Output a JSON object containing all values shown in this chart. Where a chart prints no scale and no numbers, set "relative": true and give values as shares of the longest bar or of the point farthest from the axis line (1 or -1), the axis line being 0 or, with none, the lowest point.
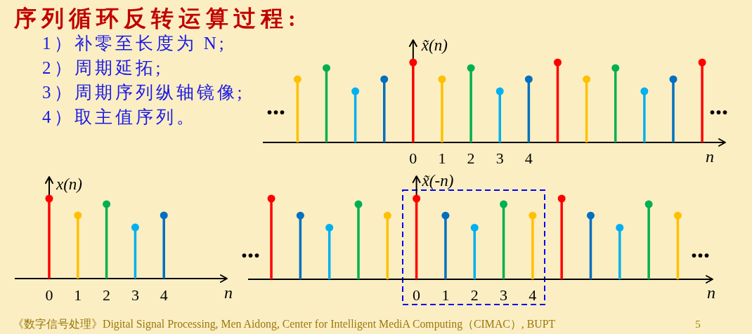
{
  "chart_data": [
    {
      "type": "other",
      "title": "序列循环反转运算过程:",
      "annotations": [
        "1）补零至长度为 N;",
        "2）周期延拓;",
        "3）周期序列纵轴镜像;",
        "4）取主值序列。",
        "《数字信号处理》Digital Signal Processing, Men Aidong, Center for Intelligent MediA Computing（CIMAC）, BUPT",
        "5"
      ]
    },
    {
      "type": "lollipop",
      "ylabel": "x̃(n)",
      "xlabel": "n",
      "relative": true,
      "marker": "circle",
      "xlim": [
        -5.2,
        10.8
      ],
      "xticks": [
        0,
        1,
        2,
        3,
        4
      ],
      "x": [
        -4,
        -3,
        -2,
        -1,
        0,
        1,
        2,
        3,
        4,
        5,
        6,
        7,
        8,
        9,
        10
      ],
      "values": [
        0.79,
        0.93,
        0.64,
        0.79,
        1,
        0.79,
        0.93,
        0.64,
        0.79,
        1,
        0.79,
        0.93,
        0.64,
        0.79,
        1
      ],
      "colors": [
        "#ffc000",
        "#00b050",
        "#00b0f0",
        "#0070c0",
        "#ff0000",
        "#ffc000",
        "#00b050",
        "#00b0f0",
        "#0070c0",
        "#ff0000",
        "#ffc000",
        "#00b050",
        "#00b0f0",
        "#0070c0",
        "#ff0000"
      ],
      "annotations": [
        "...",
        "..."
      ]
    },
    {
      "type": "lollipop",
      "ylabel": "x(n)",
      "xlabel": "n",
      "relative": true,
      "marker": "circle",
      "xlim": [
        -1.2,
        6.2
      ],
      "xticks": [
        0,
        1,
        2,
        3,
        4
      ],
      "x": [
        0,
        1,
        2,
        3,
        4
      ],
      "values": [
        1,
        0.79,
        0.93,
        0.64,
        0.79
      ],
      "colors": [
        "#ff0000",
        "#ffc000",
        "#00b050",
        "#00b0f0",
        "#0070c0"
      ]
    },
    {
      "type": "lollipop",
      "ylabel": "x̃(-n)",
      "xlabel": "n",
      "relative": true,
      "marker": "circle",
      "xlim": [
        -5.8,
        10.2
      ],
      "xticks": [
        0,
        1,
        2,
        3,
        4
      ],
      "x": [
        -5,
        -4,
        -3,
        -2,
        -1,
        0,
        1,
        2,
        3,
        4,
        5,
        6,
        7,
        8,
        9
      ],
      "values": [
        1,
        0.79,
        0.64,
        0.93,
        0.79,
        1,
        0.79,
        0.64,
        0.93,
        0.79,
        1,
        0.79,
        0.64,
        0.93,
        0.79
      ],
      "colors": [
        "#ff0000",
        "#0070c0",
        "#00b0f0",
        "#00b050",
        "#ffc000",
        "#ff0000",
        "#0070c0",
        "#00b0f0",
        "#00b050",
        "#ffc000",
        "#ff0000",
        "#0070c0",
        "#00b0f0",
        "#00b050",
        "#ffc000"
      ],
      "annotations": [
        "...",
        "..."
      ]
    }
  ]
}
